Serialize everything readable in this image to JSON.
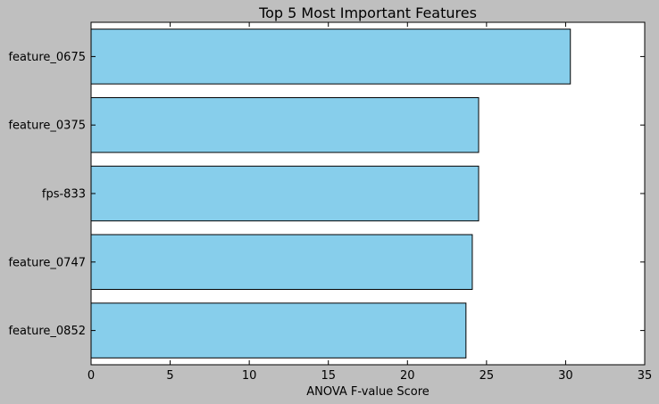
{
  "chart_data": {
    "type": "bar",
    "orientation": "horizontal",
    "title": "Top 5 Most Important Features",
    "xlabel": "ANOVA F-value Score",
    "ylabel": "",
    "categories": [
      "feature_0675",
      "feature_0375",
      "fps-833",
      "feature_0747",
      "feature_0852"
    ],
    "values": [
      30.3,
      24.5,
      24.5,
      24.1,
      23.7
    ],
    "xlim": [
      0,
      35
    ],
    "xticks": [
      "0",
      "5",
      "10",
      "15",
      "20",
      "25",
      "30",
      "35"
    ],
    "grid": false,
    "legend": "none",
    "colors": {
      "bar": "#87ceeb",
      "bar_edge": "#000000",
      "plot_background": "#ffffff",
      "figure_background": "#bfbfbf"
    }
  }
}
